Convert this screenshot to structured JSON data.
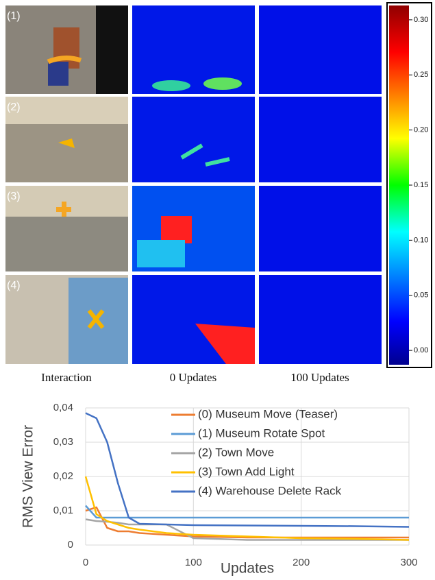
{
  "figure": {
    "panels": [
      "(1)",
      "(2)",
      "(3)",
      "(4)"
    ],
    "columns": [
      "Interaction",
      "0 Updates",
      "100 Updates"
    ],
    "colorbar": {
      "lim": [
        -0.013,
        0.313
      ],
      "ticks": [
        {
          "value": 0,
          "label": "0.00"
        },
        {
          "value": 0.05,
          "label": "0.05"
        },
        {
          "value": 0.1,
          "label": "0.10"
        },
        {
          "value": 0.15,
          "label": "0.15"
        },
        {
          "value": 0.2,
          "label": "0.20"
        },
        {
          "value": 0.25,
          "label": "0.25"
        },
        {
          "value": 0.3,
          "label": "0.30"
        }
      ]
    }
  },
  "chart_data": {
    "type": "line",
    "y_label": "RMS View Error",
    "x_label": "Updates",
    "x": [
      0,
      10,
      20,
      30,
      40,
      50,
      75,
      100,
      150,
      200,
      250,
      300
    ],
    "series": [
      {
        "name": "(0) Museum Move (Teaser)",
        "color": "#ed7d31",
        "values": [
          0.01,
          0.011,
          0.005,
          0.004,
          0.004,
          0.0035,
          0.003,
          0.0025,
          0.0022,
          0.0022,
          0.0022,
          0.0022
        ]
      },
      {
        "name": "(1) Museum Rotate Spot",
        "color": "#5b9bd5",
        "values": [
          0.0115,
          0.008,
          0.008,
          0.008,
          0.008,
          0.008,
          0.008,
          0.008,
          0.008,
          0.008,
          0.008,
          0.008
        ]
      },
      {
        "name": "(2) Town Move",
        "color": "#a5a5a5",
        "values": [
          0.0075,
          0.007,
          0.0068,
          0.0065,
          0.006,
          0.006,
          0.006,
          0.002,
          0.0015,
          0.0015,
          0.0015,
          0.0015
        ]
      },
      {
        "name": "(3) Town Add Light",
        "color": "#ffc000",
        "values": [
          0.02,
          0.009,
          0.007,
          0.006,
          0.005,
          0.0045,
          0.0035,
          0.003,
          0.0025,
          0.002,
          0.0018,
          0.0015
        ]
      },
      {
        "name": "(4) Warehouse Delete Rack",
        "color": "#4472c4",
        "values": [
          0.0385,
          0.037,
          0.03,
          0.018,
          0.008,
          0.0062,
          0.006,
          0.0058,
          0.0057,
          0.0056,
          0.0055,
          0.0053
        ]
      }
    ],
    "xlim": [
      0,
      300
    ],
    "ylim": [
      0,
      0.04
    ],
    "xticks": [
      0,
      100,
      200,
      300
    ],
    "yticks": [
      0,
      {
        "value": 0.01,
        "label": "0,01"
      },
      {
        "value": 0.02,
        "label": "0,02"
      },
      {
        "value": 0.03,
        "label": "0,03"
      },
      {
        "value": 0.04,
        "label": "0,04"
      }
    ],
    "grid": true
  }
}
